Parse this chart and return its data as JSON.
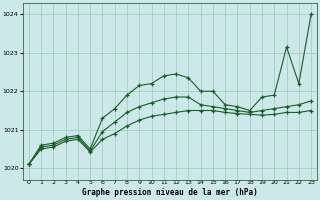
{
  "title": "Graphe pression niveau de la mer (hPa)",
  "bg_color": "#cce8e8",
  "grid_color": "#99ccbb",
  "line_color": "#1a5c2a",
  "xlim": [
    -0.5,
    23.5
  ],
  "ylim": [
    1019.7,
    1024.3
  ],
  "xticks": [
    0,
    1,
    2,
    3,
    4,
    5,
    6,
    7,
    8,
    9,
    10,
    11,
    12,
    13,
    14,
    15,
    16,
    17,
    18,
    19,
    20,
    21,
    22,
    23
  ],
  "yticks": [
    1020,
    1021,
    1022,
    1023,
    1024
  ],
  "series1_x": [
    0,
    1,
    2,
    3,
    4,
    5,
    6,
    7,
    8,
    9,
    10,
    11,
    12,
    13,
    14,
    15,
    16,
    17,
    18,
    19,
    20,
    21,
    22,
    23
  ],
  "series1_y": [
    1020.1,
    1020.6,
    1020.65,
    1020.8,
    1020.85,
    1020.5,
    1021.3,
    1021.55,
    1021.9,
    1022.15,
    1022.2,
    1022.4,
    1022.45,
    1022.35,
    1022.0,
    1022.0,
    1021.65,
    1021.6,
    1021.5,
    1021.85,
    1021.9,
    1023.15,
    1022.2,
    1024.0
  ],
  "series2_x": [
    0,
    1,
    2,
    3,
    4,
    5,
    6,
    7,
    8,
    9,
    10,
    11,
    12,
    13,
    14,
    15,
    16,
    17,
    18,
    19,
    20,
    21,
    22,
    23
  ],
  "series2_y": [
    1020.1,
    1020.55,
    1020.6,
    1020.75,
    1020.8,
    1020.45,
    1020.95,
    1021.2,
    1021.45,
    1021.6,
    1021.7,
    1021.8,
    1021.85,
    1021.85,
    1021.65,
    1021.6,
    1021.55,
    1021.5,
    1021.45,
    1021.5,
    1021.55,
    1021.6,
    1021.65,
    1021.75
  ],
  "series3_x": [
    0,
    1,
    2,
    3,
    4,
    5,
    6,
    7,
    8,
    9,
    10,
    11,
    12,
    13,
    14,
    15,
    16,
    17,
    18,
    19,
    20,
    21,
    22,
    23
  ],
  "series3_y": [
    1020.1,
    1020.5,
    1020.55,
    1020.7,
    1020.75,
    1020.42,
    1020.75,
    1020.9,
    1021.1,
    1021.25,
    1021.35,
    1021.4,
    1021.45,
    1021.5,
    1021.5,
    1021.5,
    1021.45,
    1021.42,
    1021.4,
    1021.38,
    1021.4,
    1021.45,
    1021.45,
    1021.5
  ]
}
